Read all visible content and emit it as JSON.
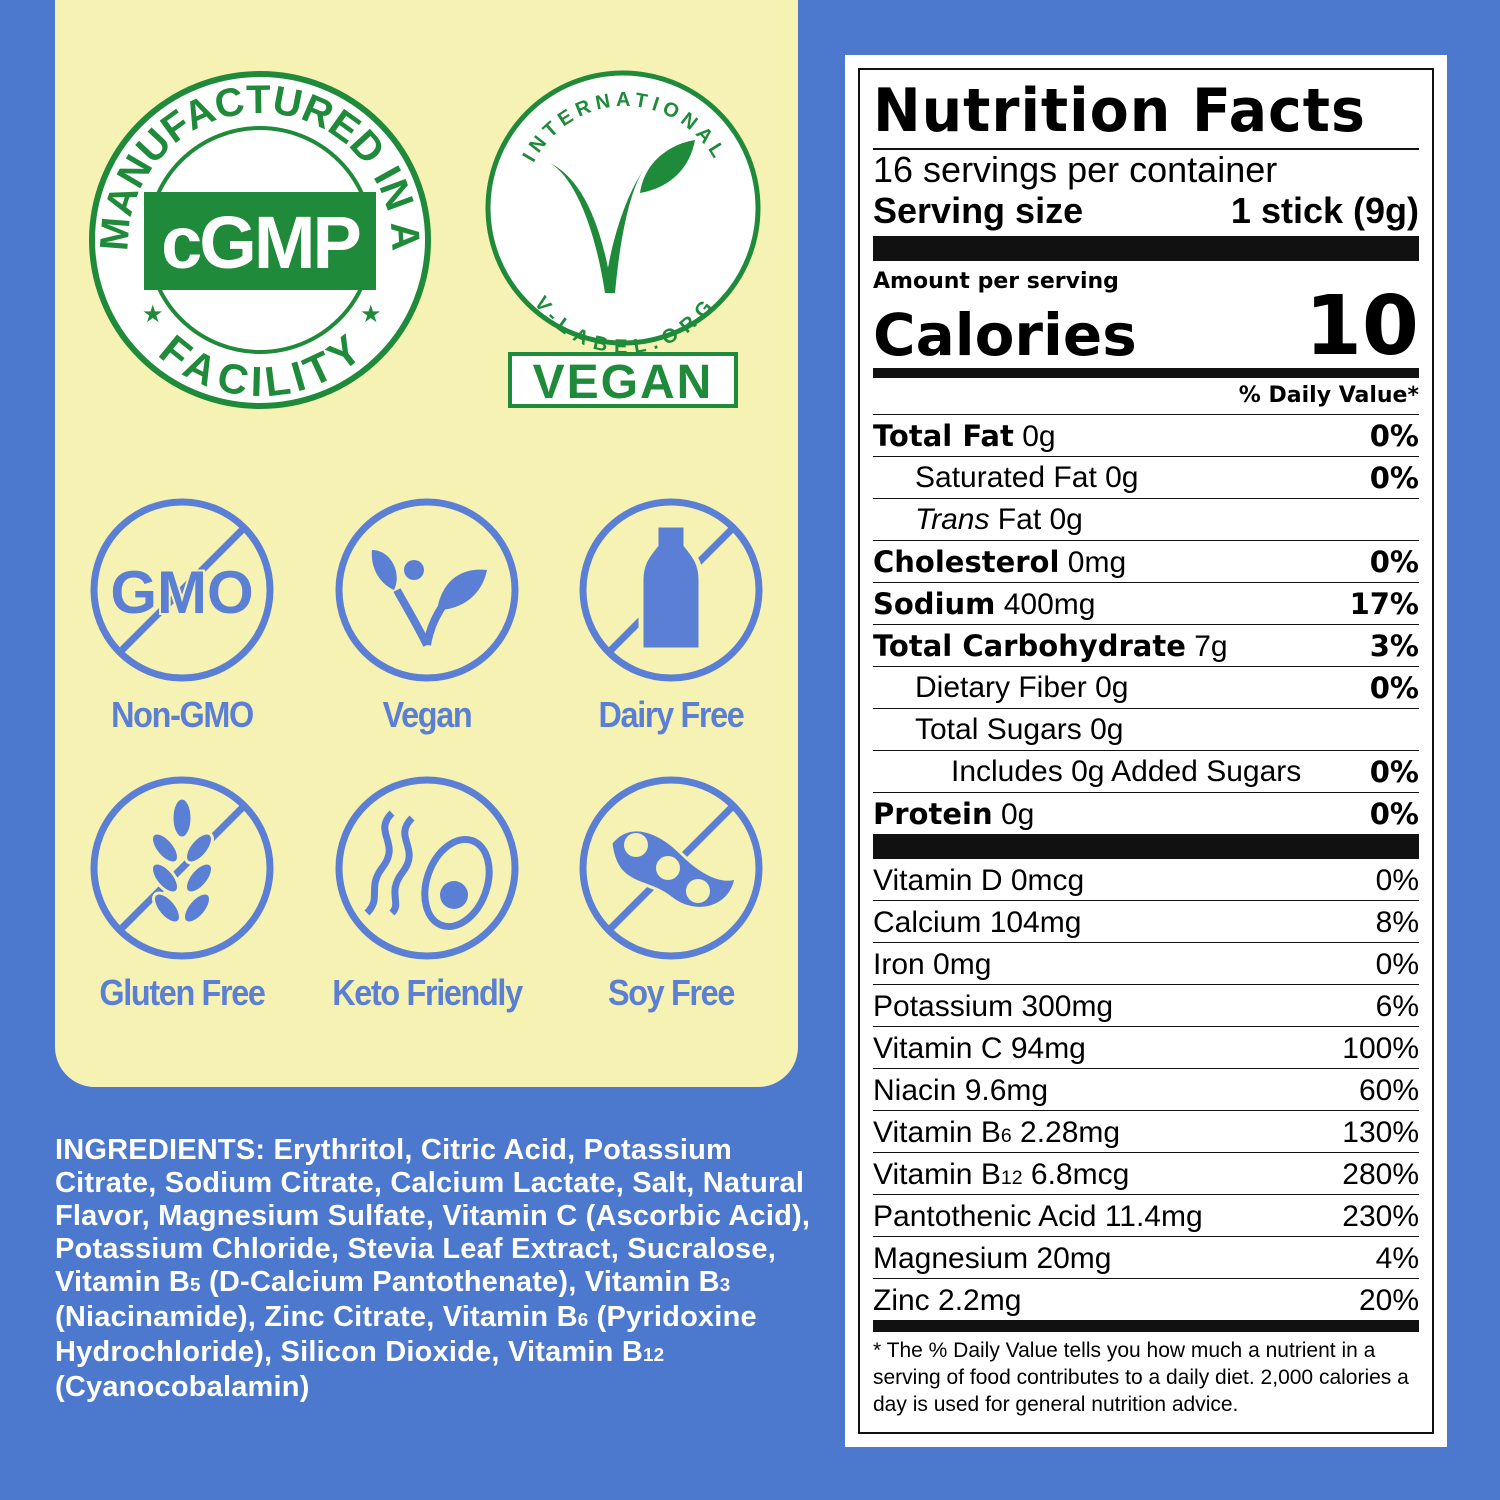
{
  "badges": {
    "cgmp": {
      "ring_text_top": "MANUFACTURED IN A",
      "ring_text_bottom": "FACILITY",
      "center": "cGMP",
      "color": "#1f8a3a"
    },
    "vlabel": {
      "ring_text_top": "INTERNATIONAL",
      "ring_text_bottom": "V-LABEL.ORG",
      "label": "VEGAN",
      "color": "#1f8a3a"
    }
  },
  "colors": {
    "background": "#4c78cd",
    "panel": "#f6f2b3",
    "icon": "#5b7fd4"
  },
  "features": [
    {
      "label": "Non-GMO",
      "icon": "no-gmo-icon",
      "icon_text": "GMO"
    },
    {
      "label": "Vegan",
      "icon": "vegan-leaf-icon"
    },
    {
      "label": "Dairy Free",
      "icon": "no-milk-bottle-icon"
    },
    {
      "label": "Gluten Free",
      "icon": "no-wheat-icon"
    },
    {
      "label": "Keto Friendly",
      "icon": "avocado-icon"
    },
    {
      "label": "Soy Free",
      "icon": "no-soybean-icon"
    }
  ],
  "ingredients": {
    "heading": "INGREDIENTS:",
    "parts": [
      " Erythritol, Citric Acid, Potassium Citrate, Sodium Citrate, Calcium Lactate, Salt, Natural Flavor, Magnesium Sulfate, Vitamin C (Ascorbic Acid), Potassium Chloride, Stevia Leaf Extract, Sucralose, Vitamin B",
      "5",
      " (D-Calcium Pantothenate), Vitamin B",
      "3",
      " (Niacinamide), Zinc Citrate, Vitamin B",
      "6",
      " (Pyridoxine Hydrochloride), Silicon Dioxide, Vitamin B",
      "12",
      " (Cyanocobalamin)"
    ]
  },
  "nutrition": {
    "title": "Nutrition Facts",
    "servings": "16 servings per container",
    "serving_size_label": "Serving size",
    "serving_size_value": "1 stick (9g)",
    "amount_per_serving": "Amount per serving",
    "calories_label": "Calories",
    "calories_value": "10",
    "dv_header": "% Daily Value*",
    "rows": [
      {
        "name": "Total Fat",
        "amount": "0g",
        "dv": "0%",
        "bold": true
      },
      {
        "name": "Saturated Fat",
        "amount": "0g",
        "dv": "0%"
      },
      {
        "name": "Trans",
        "name_suffix": " Fat",
        "amount": "0g",
        "dv": ""
      },
      {
        "name": "Cholesterol",
        "amount": "0mg",
        "dv": "0%",
        "bold": true
      },
      {
        "name": "Sodium",
        "amount": "400mg",
        "dv": "17%",
        "bold": true
      },
      {
        "name": "Total Carbohydrate",
        "amount": "7g",
        "dv": "3%",
        "bold": true
      },
      {
        "name": "Dietary Fiber",
        "amount": "0g",
        "dv": "0%"
      },
      {
        "name": "Total Sugars",
        "amount": "0g",
        "dv": ""
      },
      {
        "name": "Includes 0g Added Sugars",
        "amount": "",
        "dv": "0%"
      },
      {
        "name": "Protein",
        "amount": "0g",
        "dv": "0%",
        "bold": true
      }
    ],
    "vitamins": [
      {
        "name": "Vitamin D 0mcg",
        "dv": "0%"
      },
      {
        "name": "Calcium 104mg",
        "dv": "8%"
      },
      {
        "name": "Iron 0mg",
        "dv": "0%"
      },
      {
        "name": "Potassium 300mg",
        "dv": "6%"
      },
      {
        "name": "Vitamin C 94mg",
        "dv": "100%"
      },
      {
        "name": "Niacin 9.6mg",
        "dv": "60%"
      },
      {
        "name": "Vitamin B",
        "sub": "6",
        "rest": " 2.28mg",
        "dv": "130%"
      },
      {
        "name": "Vitamin B",
        "sub": "12",
        "rest": " 6.8mcg",
        "dv": "280%"
      },
      {
        "name": "Pantothenic Acid 11.4mg",
        "dv": "230%"
      },
      {
        "name": "Magnesium 20mg",
        "dv": "4%"
      },
      {
        "name": "Zinc 2.2mg",
        "dv": "20%"
      }
    ],
    "footnote": "* The % Daily Value tells you how much a nutrient in a serving of food contributes to a daily diet. 2,000 calories a day is used for general nutrition advice."
  }
}
